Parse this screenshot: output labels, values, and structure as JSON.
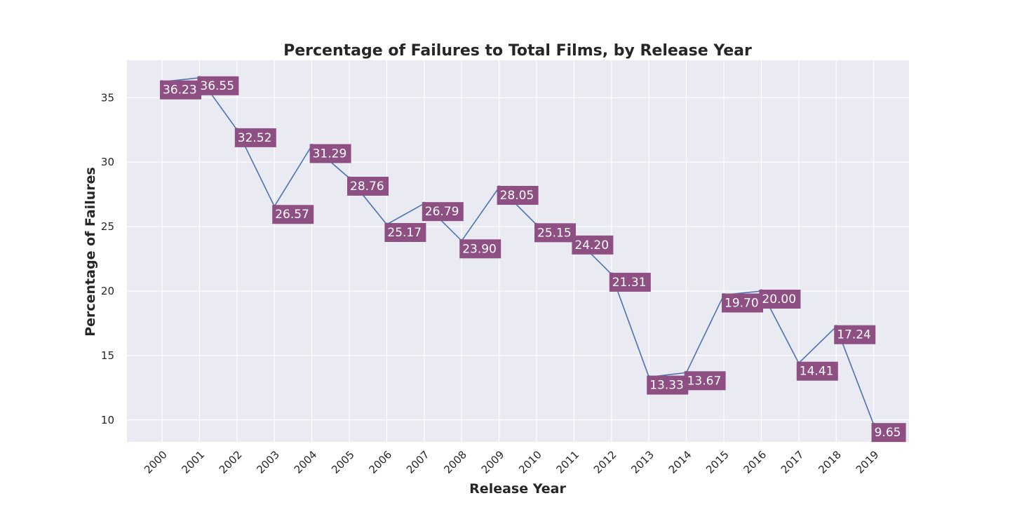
{
  "colors": {
    "plot_background": "#eaeaf2",
    "grid": "#ffffff",
    "line": "#4c72b0",
    "label_box": "#8e4f82",
    "label_text": "#ffffff"
  },
  "chart_data": {
    "type": "line",
    "title": "Percentage of Failures to Total Films, by Release Year",
    "xlabel": "Release Year",
    "ylabel": "Percentage of Failures",
    "categories": [
      "2000",
      "2001",
      "2002",
      "2003",
      "2004",
      "2005",
      "2006",
      "2007",
      "2008",
      "2009",
      "2010",
      "2011",
      "2012",
      "2013",
      "2014",
      "2015",
      "2016",
      "2017",
      "2018",
      "2019"
    ],
    "values": [
      36.23,
      36.55,
      32.52,
      26.57,
      31.29,
      28.76,
      25.17,
      26.79,
      23.9,
      28.05,
      25.15,
      24.2,
      21.31,
      13.33,
      13.67,
      19.7,
      20.0,
      14.41,
      17.24,
      9.65
    ],
    "data_labels": [
      "36.23",
      "36.55",
      "32.52",
      "26.57",
      "31.29",
      "28.76",
      "25.17",
      "26.79",
      "23.90",
      "28.05",
      "25.15",
      "24.20",
      "21.31",
      "13.33",
      "13.67",
      "19.70",
      "20.00",
      "14.41",
      "17.24",
      "9.65"
    ],
    "yticks": [
      10,
      15,
      20,
      25,
      30,
      35
    ],
    "ytick_labels": [
      "10",
      "15",
      "20",
      "25",
      "30",
      "35"
    ],
    "ylim": [
      8.3,
      37.9
    ],
    "grid": true,
    "legend": false
  }
}
